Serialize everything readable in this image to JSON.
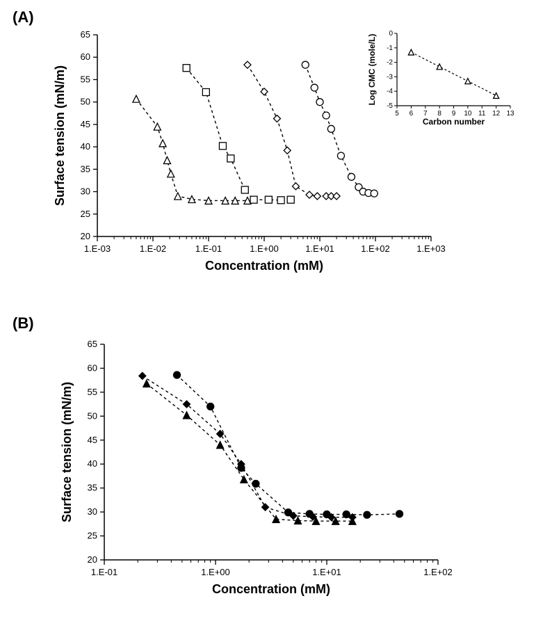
{
  "panelA": {
    "label": "(A)",
    "type": "line-scatter",
    "x_axis": {
      "label": "Concentration (mM)",
      "scale": "log",
      "min": 0.001,
      "max": 1000,
      "ticks": [
        "1.E-03",
        "1.E-02",
        "1.E-01",
        "1.E+00",
        "1.E+01",
        "1.E+02",
        "1.E+03"
      ]
    },
    "y_axis": {
      "label": "Surface tension (mN/m)",
      "scale": "linear",
      "min": 20,
      "max": 65,
      "ticks": [
        20,
        25,
        30,
        35,
        40,
        45,
        50,
        55,
        60,
        65
      ]
    },
    "line_style": {
      "dash": "4 4",
      "width": 1.4,
      "color": "#000000"
    },
    "marker_fill": "#ffffff",
    "marker_stroke": "#000000",
    "marker_size": 10,
    "axis_fontsize": 15,
    "label_fontsize": 18,
    "tick_fontsize": 13,
    "series": [
      {
        "name": "triangle",
        "marker": "triangle",
        "data": [
          [
            0.005,
            50.7
          ],
          [
            0.012,
            44.5
          ],
          [
            0.015,
            40.8
          ],
          [
            0.018,
            37.0
          ],
          [
            0.021,
            34.0
          ],
          [
            0.028,
            29.0
          ],
          [
            0.05,
            28.3
          ],
          [
            0.1,
            28.0
          ],
          [
            0.2,
            28.0
          ],
          [
            0.3,
            28.0
          ],
          [
            0.5,
            28.0
          ]
        ]
      },
      {
        "name": "square",
        "marker": "square",
        "data": [
          [
            0.04,
            57.6
          ],
          [
            0.09,
            52.2
          ],
          [
            0.18,
            40.2
          ],
          [
            0.25,
            37.4
          ],
          [
            0.45,
            30.4
          ],
          [
            0.65,
            28.2
          ],
          [
            1.2,
            28.2
          ],
          [
            2.0,
            28.1
          ],
          [
            3.0,
            28.2
          ]
        ]
      },
      {
        "name": "diamond",
        "marker": "diamond",
        "data": [
          [
            0.5,
            58.3
          ],
          [
            1.0,
            52.3
          ],
          [
            1.7,
            46.3
          ],
          [
            2.6,
            39.2
          ],
          [
            3.7,
            31.2
          ],
          [
            6.5,
            29.3
          ],
          [
            9.0,
            29.0
          ],
          [
            13.0,
            29.0
          ],
          [
            16.0,
            29.0
          ],
          [
            20.0,
            29.0
          ]
        ]
      },
      {
        "name": "circle",
        "marker": "circle",
        "data": [
          [
            5.5,
            58.3
          ],
          [
            8.0,
            53.2
          ],
          [
            10.0,
            50.0
          ],
          [
            13.0,
            47.0
          ],
          [
            16.0,
            44.0
          ],
          [
            24.0,
            38.0
          ],
          [
            37.0,
            33.3
          ],
          [
            50.0,
            31.0
          ],
          [
            60.0,
            30.0
          ],
          [
            75.0,
            29.7
          ],
          [
            95.0,
            29.6
          ]
        ]
      }
    ],
    "inset": {
      "type": "scatter-line",
      "x_axis": {
        "label": "Carbon number",
        "min": 5,
        "max": 13,
        "ticks": [
          5,
          6,
          7,
          8,
          9,
          10,
          11,
          12,
          13
        ]
      },
      "y_axis": {
        "label": "Log CMC (mole/L)",
        "min": -5,
        "max": 0,
        "ticks": [
          -5,
          -4,
          -3,
          -2,
          -1,
          0
        ]
      },
      "marker": "triangle",
      "marker_fill": "#ffffff",
      "marker_stroke": "#000000",
      "marker_size": 8,
      "line_style": {
        "dash": "3 3",
        "width": 1.2,
        "color": "#000000"
      },
      "data": [
        [
          6,
          -1.3
        ],
        [
          8,
          -2.3
        ],
        [
          10,
          -3.3
        ],
        [
          12,
          -4.3
        ]
      ],
      "axis_fontsize": 10,
      "label_fontsize": 12,
      "tick_fontsize": 10
    }
  },
  "panelB": {
    "label": "(B)",
    "type": "line-scatter",
    "x_axis": {
      "label": "Concentration (mM)",
      "scale": "log",
      "min": 0.1,
      "max": 100,
      "ticks": [
        "1.E-01",
        "1.E+00",
        "1.E+01",
        "1.E+02"
      ]
    },
    "y_axis": {
      "label": "Surface tension (mN/m)",
      "scale": "linear",
      "min": 20,
      "max": 65,
      "ticks": [
        20,
        25,
        30,
        35,
        40,
        45,
        50,
        55,
        60,
        65
      ]
    },
    "line_style": {
      "dash": "4 4",
      "width": 1.4,
      "color": "#000000"
    },
    "marker_fill": "#000000",
    "marker_stroke": "#000000",
    "marker_size": 10,
    "axis_fontsize": 15,
    "label_fontsize": 18,
    "tick_fontsize": 13,
    "series": [
      {
        "name": "circle",
        "marker": "circle",
        "data": [
          [
            0.45,
            58.6
          ],
          [
            0.9,
            52.0
          ],
          [
            1.7,
            39.2
          ],
          [
            2.3,
            35.9
          ],
          [
            4.5,
            29.9
          ],
          [
            7.0,
            29.6
          ],
          [
            10.0,
            29.5
          ],
          [
            15.0,
            29.5
          ],
          [
            23.0,
            29.4
          ],
          [
            45.0,
            29.6
          ]
        ]
      },
      {
        "name": "diamond",
        "marker": "diamond",
        "data": [
          [
            0.22,
            58.4
          ],
          [
            0.55,
            52.5
          ],
          [
            1.1,
            46.3
          ],
          [
            1.7,
            40.0
          ],
          [
            2.8,
            31.0
          ],
          [
            5.0,
            29.2
          ],
          [
            7.5,
            29.0
          ],
          [
            11.0,
            28.9
          ],
          [
            17.0,
            28.9
          ]
        ]
      },
      {
        "name": "triangle",
        "marker": "triangle",
        "data": [
          [
            0.24,
            56.8
          ],
          [
            0.55,
            50.2
          ],
          [
            1.1,
            44.0
          ],
          [
            1.8,
            36.8
          ],
          [
            3.5,
            28.5
          ],
          [
            5.5,
            28.2
          ],
          [
            8.0,
            28.1
          ],
          [
            12.0,
            28.1
          ],
          [
            17.0,
            28.1
          ]
        ]
      }
    ]
  }
}
